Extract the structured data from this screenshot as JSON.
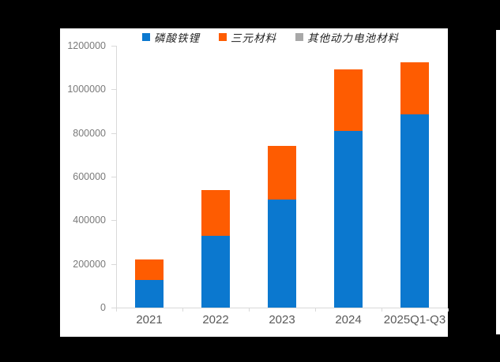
{
  "colors": {
    "canvas_background": "#000000",
    "panel_background": "#ffffff",
    "axis": "#d9d9d9",
    "y_tick_label": "#7a7a7a",
    "x_tick_label": "#595959",
    "legend_text": "#1f1f1f"
  },
  "chart_data": {
    "type": "bar",
    "stacked": true,
    "title": "",
    "xlabel": "",
    "ylabel": "",
    "grid": false,
    "legend_position": "top",
    "categories": [
      "2021",
      "2022",
      "2023",
      "2024",
      "2025Q1-Q3"
    ],
    "series": [
      {
        "name": "磷酸铁锂",
        "color": "#0b78cf",
        "values": [
          125000,
          330000,
          495000,
          810000,
          885000
        ]
      },
      {
        "name": "三元材料",
        "color": "#fe5c01",
        "values": [
          95000,
          210000,
          245000,
          280000,
          240000
        ]
      },
      {
        "name": "其他动力电池材料",
        "color": "#a8a8a8",
        "values": [
          0,
          0,
          0,
          0,
          0
        ]
      }
    ],
    "totals": [
      220000,
      540000,
      740000,
      1090000,
      1125000
    ],
    "ylim": [
      0,
      1200000
    ],
    "yticks": [
      0,
      200000,
      400000,
      600000,
      800000,
      1000000,
      1200000
    ]
  }
}
